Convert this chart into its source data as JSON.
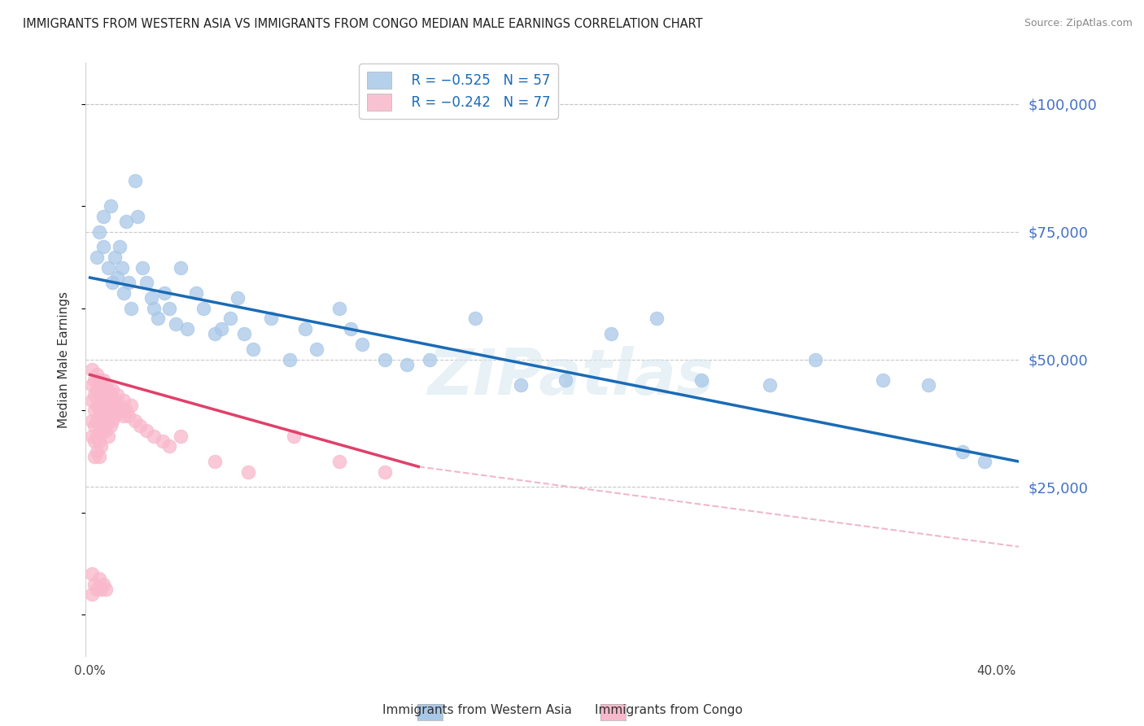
{
  "title": "IMMIGRANTS FROM WESTERN ASIA VS IMMIGRANTS FROM CONGO MEDIAN MALE EARNINGS CORRELATION CHART",
  "source": "Source: ZipAtlas.com",
  "ylabel": "Median Male Earnings",
  "xlim": [
    -0.002,
    0.41
  ],
  "ylim": [
    -8000,
    108000
  ],
  "legend_blue_r": "R = −0.525",
  "legend_blue_n": "N = 57",
  "legend_pink_r": "R = −0.242",
  "legend_pink_n": "N = 77",
  "scatter_blue_x": [
    0.003,
    0.004,
    0.006,
    0.006,
    0.008,
    0.009,
    0.01,
    0.011,
    0.012,
    0.013,
    0.014,
    0.015,
    0.016,
    0.017,
    0.018,
    0.02,
    0.021,
    0.023,
    0.025,
    0.027,
    0.028,
    0.03,
    0.033,
    0.035,
    0.038,
    0.04,
    0.043,
    0.047,
    0.05,
    0.055,
    0.058,
    0.062,
    0.065,
    0.068,
    0.072,
    0.08,
    0.088,
    0.095,
    0.1,
    0.11,
    0.115,
    0.12,
    0.13,
    0.14,
    0.15,
    0.17,
    0.19,
    0.21,
    0.23,
    0.25,
    0.27,
    0.3,
    0.32,
    0.35,
    0.37,
    0.385,
    0.395
  ],
  "scatter_blue_y": [
    70000,
    75000,
    78000,
    72000,
    68000,
    80000,
    65000,
    70000,
    66000,
    72000,
    68000,
    63000,
    77000,
    65000,
    60000,
    85000,
    78000,
    68000,
    65000,
    62000,
    60000,
    58000,
    63000,
    60000,
    57000,
    68000,
    56000,
    63000,
    60000,
    55000,
    56000,
    58000,
    62000,
    55000,
    52000,
    58000,
    50000,
    56000,
    52000,
    60000,
    56000,
    53000,
    50000,
    49000,
    50000,
    58000,
    45000,
    46000,
    55000,
    58000,
    46000,
    45000,
    50000,
    46000,
    45000,
    32000,
    30000
  ],
  "scatter_pink_x": [
    0.001,
    0.001,
    0.001,
    0.001,
    0.001,
    0.002,
    0.002,
    0.002,
    0.002,
    0.002,
    0.002,
    0.003,
    0.003,
    0.003,
    0.003,
    0.003,
    0.003,
    0.004,
    0.004,
    0.004,
    0.004,
    0.004,
    0.004,
    0.005,
    0.005,
    0.005,
    0.005,
    0.005,
    0.006,
    0.006,
    0.006,
    0.006,
    0.007,
    0.007,
    0.007,
    0.007,
    0.008,
    0.008,
    0.008,
    0.008,
    0.009,
    0.009,
    0.009,
    0.01,
    0.01,
    0.01,
    0.011,
    0.011,
    0.012,
    0.012,
    0.013,
    0.014,
    0.015,
    0.015,
    0.016,
    0.017,
    0.018,
    0.02,
    0.022,
    0.025,
    0.028,
    0.032,
    0.035,
    0.04,
    0.055,
    0.07,
    0.09,
    0.11,
    0.13,
    0.001,
    0.001,
    0.002,
    0.003,
    0.004,
    0.005,
    0.006,
    0.007
  ],
  "scatter_pink_y": [
    48000,
    45000,
    42000,
    38000,
    35000,
    46000,
    43000,
    40000,
    37000,
    34000,
    31000,
    47000,
    44000,
    41000,
    38000,
    35000,
    32000,
    46000,
    43000,
    40000,
    37000,
    34000,
    31000,
    45000,
    42000,
    39000,
    36000,
    33000,
    46000,
    43000,
    40000,
    37000,
    45000,
    42000,
    39000,
    36000,
    44000,
    41000,
    38000,
    35000,
    43000,
    40000,
    37000,
    44000,
    41000,
    38000,
    42000,
    39000,
    43000,
    40000,
    41000,
    40000,
    42000,
    39000,
    40000,
    39000,
    41000,
    38000,
    37000,
    36000,
    35000,
    34000,
    33000,
    35000,
    30000,
    28000,
    35000,
    30000,
    28000,
    8000,
    4000,
    6000,
    5000,
    7000,
    5000,
    6000,
    5000
  ],
  "blue_line_x": [
    0.0,
    0.41
  ],
  "blue_line_y": [
    66000,
    30000
  ],
  "pink_line_x": [
    0.0,
    0.145
  ],
  "pink_line_y": [
    47000,
    29000
  ],
  "dashed_line_x": [
    0.145,
    0.5
  ],
  "dashed_line_y": [
    29000,
    8000
  ],
  "blue_scatter_color": "#a8c8e8",
  "pink_scatter_color": "#f9b8cc",
  "blue_line_color": "#1a6bb5",
  "pink_line_color": "#e0406a",
  "dashed_line_color": "#f0b8c8",
  "right_axis_color": "#4472c4",
  "watermark": "ZIPatlas",
  "background_color": "#ffffff",
  "grid_color": "#c8c8c8",
  "title_fontsize": 10.5,
  "source_fontsize": 9,
  "axis_label_fontsize": 11,
  "tick_fontsize": 11,
  "legend_fontsize": 12,
  "scatter_size": 140
}
